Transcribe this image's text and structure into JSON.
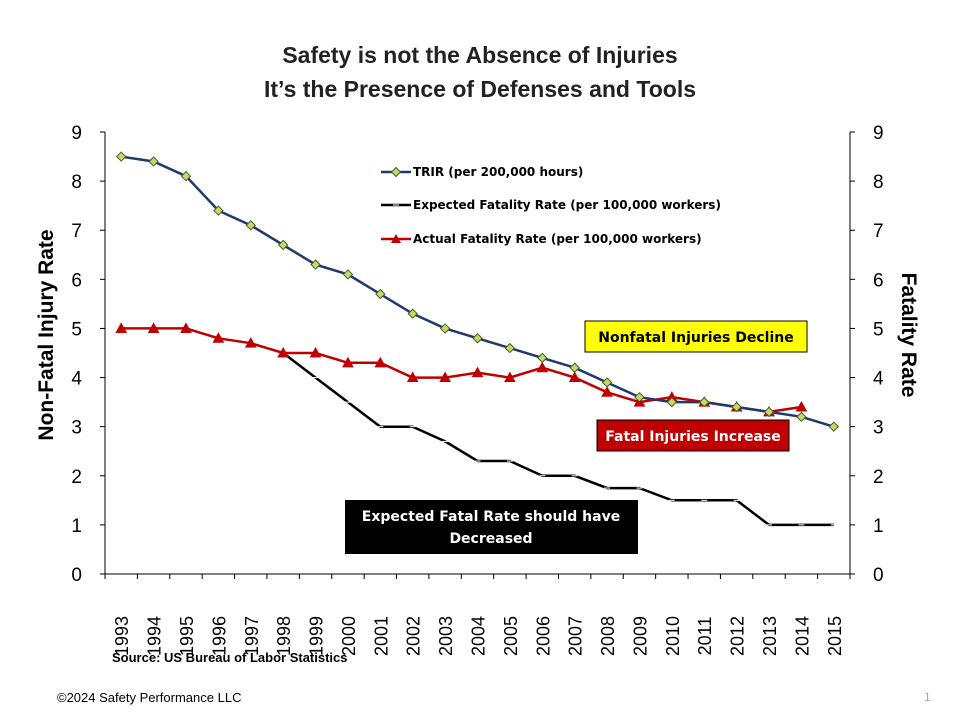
{
  "chart_data": {
    "type": "line",
    "title": [
      "Safety is not the Absence of Injuries",
      "It’s the Presence of Defenses and Tools"
    ],
    "ylabel": "Non-Fatal Injury Rate",
    "y2label": "Fatality Rate",
    "ylim": [
      0,
      9
    ],
    "y2lim": [
      0,
      9
    ],
    "yticks": [
      "0",
      "1",
      "2",
      "3",
      "4",
      "5",
      "6",
      "7",
      "8",
      "9"
    ],
    "categories": [
      "1993",
      "1994",
      "1995",
      "1996",
      "1997",
      "1998",
      "1999",
      "2000",
      "2001",
      "2002",
      "2003",
      "2004",
      "2005",
      "2006",
      "2007",
      "2008",
      "2009",
      "2010",
      "2011",
      "2012",
      "2013",
      "2014",
      "2015"
    ],
    "series": [
      {
        "key": "trir",
        "name": "TRIR (per 200,000 hours)",
        "color": "#1f3a6e",
        "marker": "diamond",
        "marker_fill": "#c5d86d",
        "values": [
          8.5,
          8.4,
          8.1,
          7.4,
          7.1,
          6.7,
          6.3,
          6.1,
          5.7,
          5.3,
          5.0,
          4.8,
          4.6,
          4.4,
          4.2,
          3.9,
          3.6,
          3.5,
          3.5,
          3.4,
          3.3,
          3.2,
          3.0
        ]
      },
      {
        "key": "expected",
        "name": "Expected Fatality Rate (per 100,000 workers)",
        "color": "#000000",
        "marker": "dash",
        "values": [
          null,
          null,
          null,
          null,
          null,
          4.5,
          4.0,
          3.5,
          3.0,
          3.0,
          2.7,
          2.3,
          2.3,
          2.0,
          2.0,
          1.75,
          1.75,
          1.5,
          1.5,
          1.5,
          1.0,
          1.0,
          1.0
        ]
      },
      {
        "key": "actual",
        "name": "Actual Fatality Rate (per 100,000 workers)",
        "color": "#c00000",
        "marker": "triangle",
        "values": [
          5.0,
          5.0,
          5.0,
          4.8,
          4.7,
          4.5,
          4.5,
          4.3,
          4.3,
          4.0,
          4.0,
          4.1,
          4.0,
          4.2,
          4.0,
          3.7,
          3.5,
          3.6,
          3.5,
          3.4,
          3.3,
          3.4,
          null
        ]
      }
    ],
    "annotations": [
      {
        "text": "Nonfatal Injuries Decline",
        "fill": "#ffff00",
        "color": "#000000"
      },
      {
        "text": "Fatal Injuries Increase",
        "fill": "#c00000",
        "color": "#ffffff"
      },
      {
        "text_lines": [
          "Expected Fatal Rate should have",
          "Decreased"
        ],
        "fill": "#000000",
        "color": "#ffffff"
      }
    ],
    "source": "Source: US Bureau of Labor Statistics"
  },
  "footer": {
    "copyright": "©2024 Safety Performance LLC",
    "page_number": "1"
  }
}
